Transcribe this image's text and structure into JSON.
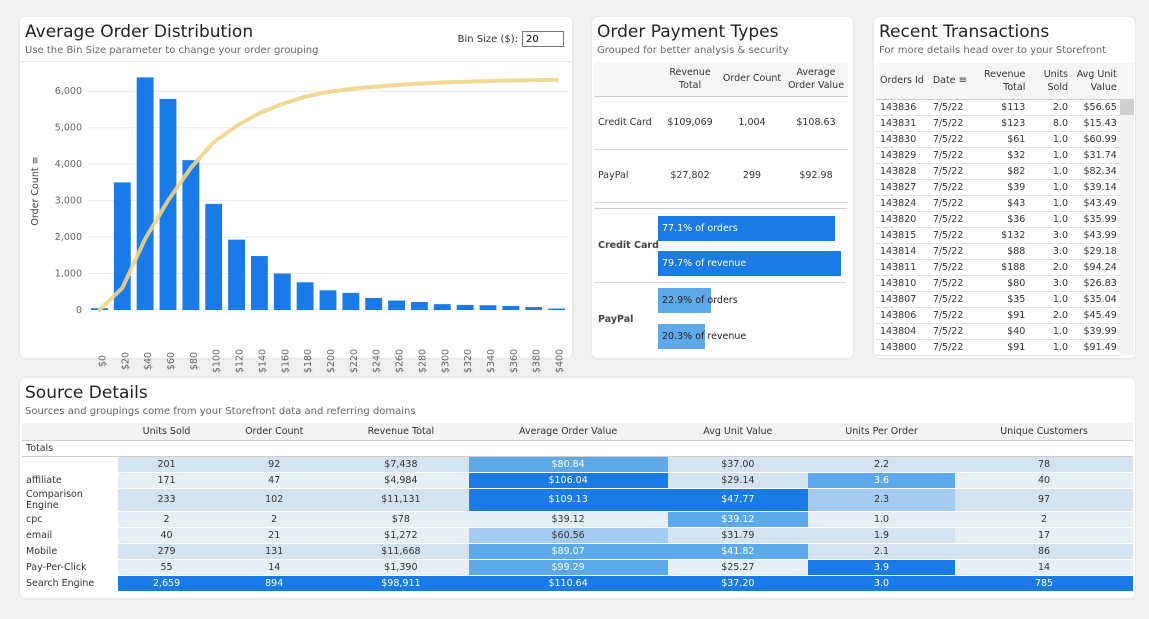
{
  "order_distribution": {
    "title": "Average Order Distribution",
    "subtitle": "Use the Bin Size parameter to change your order grouping",
    "bin_label": "Bin Size ($):",
    "bin_value": "20",
    "y_axis_label": "Order Count",
    "bar_color": "#1a7be6",
    "pareto_color": "#f0d48a"
  },
  "chart_data": {
    "type": "bar",
    "categories": [
      "$0",
      "$20",
      "$40",
      "$60",
      "$80",
      "$100",
      "$120",
      "$140",
      "$160",
      "$180",
      "$200",
      "$220",
      "$240",
      "$260",
      "$280",
      "$300",
      "$320",
      "$340",
      "$360",
      "$380",
      "$400"
    ],
    "values": [
      50,
      3500,
      6380,
      5790,
      4110,
      2910,
      1930,
      1480,
      1000,
      760,
      540,
      470,
      330,
      260,
      220,
      160,
      140,
      130,
      110,
      80,
      40
    ],
    "pareto": [
      0,
      600,
      1950,
      3000,
      3900,
      4600,
      5050,
      5400,
      5650,
      5850,
      5980,
      6060,
      6120,
      6170,
      6210,
      6240,
      6260,
      6280,
      6295,
      6305,
      6310
    ],
    "ylabel": "Order Count",
    "ylim": [
      0,
      6500
    ],
    "yticks": [
      0,
      1000,
      2000,
      3000,
      4000,
      5000,
      6000
    ],
    "ytick_labels": [
      "0",
      "1,000",
      "2,000",
      "3,000",
      "4,000",
      "5,000",
      "6,000"
    ],
    "grid": true
  },
  "payment_types": {
    "title": "Order Payment Types",
    "subtitle": "Grouped for better analysis & security",
    "headers": [
      "",
      "Revenue Total",
      "Order Count",
      "Average Order Value"
    ],
    "rows": [
      {
        "type": "Credit Card",
        "revenue": "$109,069",
        "count": "1,004",
        "aov": "$108.63"
      },
      {
        "type": "PayPal",
        "revenue": "$27,802",
        "count": "299",
        "aov": "$92.98"
      }
    ],
    "bars": [
      {
        "type": "Credit Card",
        "items": [
          {
            "label": "77.1% of orders",
            "pct": 77.1
          },
          {
            "label": "79.7% of revenue",
            "pct": 79.7
          }
        ]
      },
      {
        "type": "PayPal",
        "items": [
          {
            "label": "22.9% of orders",
            "pct": 22.9
          },
          {
            "label": "20.3% of revenue",
            "pct": 20.3
          }
        ]
      }
    ]
  },
  "recent_transactions": {
    "title": "Recent Transactions",
    "subtitle": "For more details head over to your Storefront",
    "headers": [
      "Orders Id",
      "Date",
      "Revenue Total",
      "Units Sold",
      "Avg Unit Value"
    ],
    "rows": [
      [
        "143836",
        "7/5/22",
        "$113",
        "2.0",
        "$56.65"
      ],
      [
        "143831",
        "7/5/22",
        "$123",
        "8.0",
        "$15.43"
      ],
      [
        "143830",
        "7/5/22",
        "$61",
        "1.0",
        "$60.99"
      ],
      [
        "143829",
        "7/5/22",
        "$32",
        "1.0",
        "$31.74"
      ],
      [
        "143828",
        "7/5/22",
        "$82",
        "1.0",
        "$82.34"
      ],
      [
        "143827",
        "7/5/22",
        "$39",
        "1.0",
        "$39.14"
      ],
      [
        "143824",
        "7/5/22",
        "$43",
        "1.0",
        "$43.49"
      ],
      [
        "143820",
        "7/5/22",
        "$36",
        "1.0",
        "$35.99"
      ],
      [
        "143815",
        "7/5/22",
        "$132",
        "3.0",
        "$43.99"
      ],
      [
        "143814",
        "7/5/22",
        "$88",
        "3.0",
        "$29.18"
      ],
      [
        "143811",
        "7/5/22",
        "$188",
        "2.0",
        "$94.24"
      ],
      [
        "143810",
        "7/5/22",
        "$80",
        "3.0",
        "$26.83"
      ],
      [
        "143807",
        "7/5/22",
        "$35",
        "1.0",
        "$35.04"
      ],
      [
        "143806",
        "7/5/22",
        "$91",
        "2.0",
        "$45.49"
      ],
      [
        "143804",
        "7/5/22",
        "$40",
        "1.0",
        "$39.99"
      ],
      [
        "143800",
        "7/5/22",
        "$91",
        "1.0",
        "$91.49"
      ]
    ]
  },
  "source_details": {
    "title": "Source Details",
    "subtitle": "Sources and groupings come from your Storefront data and referring domains",
    "headers": [
      "",
      "Units Sold",
      "Order Count",
      "Revenue Total",
      "Average Order Value",
      "Avg Unit Value",
      "Units Per Order",
      "Unique Customers"
    ],
    "totals_label": "Totals",
    "rows": [
      {
        "label": "",
        "cells": [
          "201",
          "92",
          "$7,438",
          "$80.84",
          "$37.00",
          "2.2",
          "78"
        ],
        "shade": [
          1,
          1,
          1,
          3,
          1,
          1,
          1
        ]
      },
      {
        "label": "affiliate",
        "cells": [
          "171",
          "47",
          "$4,984",
          "$106.04",
          "$29.14",
          "3.6",
          "40"
        ],
        "shade": [
          0,
          0,
          0,
          4,
          1,
          3,
          0
        ]
      },
      {
        "label": "Comparison Engine",
        "cells": [
          "233",
          "102",
          "$11,131",
          "$109.13",
          "$47.77",
          "2.3",
          "97"
        ],
        "shade": [
          1,
          1,
          1,
          4,
          4,
          2,
          1
        ]
      },
      {
        "label": "cpc",
        "cells": [
          "2",
          "2",
          "$78",
          "$39.12",
          "$39.12",
          "1.0",
          "2"
        ],
        "shade": [
          0,
          0,
          0,
          0,
          3,
          0,
          0
        ]
      },
      {
        "label": "email",
        "cells": [
          "40",
          "21",
          "$1,272",
          "$60.56",
          "$31.79",
          "1.9",
          "17"
        ],
        "shade": [
          0,
          0,
          0,
          2,
          1,
          1,
          0
        ]
      },
      {
        "label": "Mobile",
        "cells": [
          "279",
          "131",
          "$11,668",
          "$89.07",
          "$41.82",
          "2.1",
          "86"
        ],
        "shade": [
          1,
          1,
          1,
          3,
          3,
          1,
          1
        ]
      },
      {
        "label": "Pay-Per-Click",
        "cells": [
          "55",
          "14",
          "$1,390",
          "$99.29",
          "$25.27",
          "3.9",
          "14"
        ],
        "shade": [
          0,
          0,
          0,
          3,
          0,
          4,
          0
        ]
      },
      {
        "label": "Search Engine",
        "cells": [
          "2,659",
          "894",
          "$98,911",
          "$110.64",
          "$37.20",
          "3.0",
          "785"
        ],
        "shade": [
          4,
          4,
          4,
          4,
          4,
          4,
          4
        ]
      }
    ],
    "shade_colors": [
      "#e8eef5",
      "#d4e3f2",
      "#a5cbf0",
      "#5ea9ec",
      "#1a7be6"
    ]
  }
}
